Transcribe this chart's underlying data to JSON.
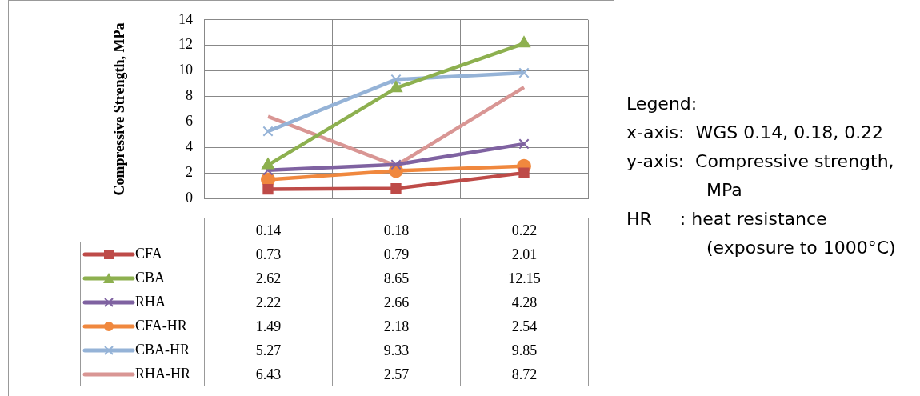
{
  "chart_data": {
    "type": "line",
    "ylabel": "Compressive Strength, MPa",
    "categories": [
      "0.14",
      "0.18",
      "0.22"
    ],
    "series": [
      {
        "name": "CFA",
        "color": "#be4b48",
        "marker": "square",
        "values": [
          0.73,
          0.79,
          2.01
        ]
      },
      {
        "name": "CBA",
        "color": "#8db04f",
        "marker": "triangle",
        "values": [
          2.62,
          8.65,
          12.15
        ]
      },
      {
        "name": "RHA",
        "color": "#7f62a1",
        "marker": "cross",
        "values": [
          2.22,
          2.66,
          4.28
        ]
      },
      {
        "name": "CFA-HR",
        "color": "#f0883e",
        "marker": "circle",
        "values": [
          1.49,
          2.18,
          2.54
        ]
      },
      {
        "name": "CBA-HR",
        "color": "#95b3d7",
        "marker": "cross",
        "values": [
          5.27,
          9.33,
          9.85
        ]
      },
      {
        "name": "RHA-HR",
        "color": "#d99694",
        "marker": "none",
        "values": [
          6.43,
          2.57,
          8.72
        ]
      }
    ],
    "ylim": [
      0,
      14
    ],
    "yticks": [
      0,
      2,
      4,
      6,
      8,
      10,
      12,
      14
    ],
    "grid": true,
    "legend": "bottom",
    "data_labels": true,
    "annotations": [
      "Legend:",
      "x-axis:  WGS 0.14, 0.18, 0.22",
      "y-axis:  Compressive strength, MPa",
      "HR     : heat resistance (exposure to 1000°C)"
    ]
  }
}
